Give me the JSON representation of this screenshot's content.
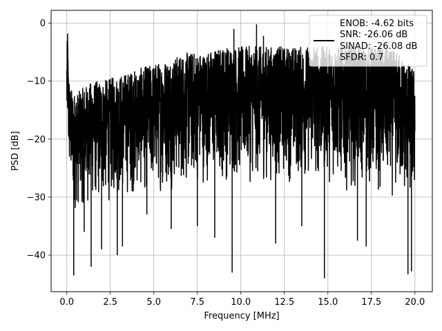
{
  "chart_data": {
    "type": "line",
    "title": "",
    "xlabel": "Frequency [MHz]",
    "ylabel": "PSD [dB]",
    "xlim": [
      -0.9,
      21.0
    ],
    "ylim": [
      -46.3,
      2.2
    ],
    "xticks": [
      0.0,
      2.5,
      5.0,
      7.5,
      10.0,
      12.5,
      15.0,
      17.5,
      20.0
    ],
    "xtick_labels": [
      "0.0",
      "2.5",
      "5.0",
      "7.5",
      "10.0",
      "12.5",
      "15.0",
      "17.5",
      "20.0"
    ],
    "yticks": [
      0,
      -10,
      -20,
      -30,
      -40
    ],
    "ytick_labels": [
      "0",
      "−10",
      "−20",
      "−30",
      "−40"
    ],
    "grid": true,
    "legend_position": "top-right",
    "series": [
      {
        "name": "ENOB: -4.62 bits",
        "color": "#000000",
        "x": [
          0.0,
          0.05,
          0.1,
          0.2,
          0.4,
          0.6,
          1.0,
          1.5,
          2.0,
          3.0,
          4.0,
          5.0,
          6.0,
          7.0,
          8.0,
          9.0,
          10.0,
          11.0,
          12.0,
          13.0,
          14.0,
          15.0,
          16.0,
          17.0,
          18.0,
          19.0,
          20.0
        ],
        "upper": [
          -4,
          -2,
          -8,
          -11,
          -12,
          -12,
          -11,
          -10,
          -10,
          -9,
          -8,
          -7,
          -6,
          -5,
          -5,
          -4,
          -4,
          -4,
          -4,
          -4,
          -4,
          -4,
          -4,
          -4,
          -4,
          -5,
          -8
        ],
        "lower": [
          -24,
          -22,
          -27,
          -30,
          -33,
          -33,
          -32,
          -32,
          -32,
          -31,
          -30,
          -30,
          -29,
          -29,
          -28,
          -28,
          -28,
          -28,
          -28,
          -28,
          -28,
          -28,
          -29,
          -29,
          -30,
          -31,
          -33
        ],
        "spikes": [
          [
            0.05,
            -1.8
          ],
          [
            0.4,
            -43.5
          ],
          [
            1.0,
            -36.0
          ],
          [
            1.4,
            -42.0
          ],
          [
            2.0,
            -39.0
          ],
          [
            2.9,
            -40.0
          ],
          [
            3.2,
            -38.5
          ],
          [
            4.6,
            -33.0
          ],
          [
            6.0,
            -35.5
          ],
          [
            7.5,
            -35.0
          ],
          [
            8.5,
            -37.0
          ],
          [
            9.5,
            -43.0
          ],
          [
            10.9,
            -0.2
          ],
          [
            12.0,
            -38.0
          ],
          [
            13.5,
            -35.0
          ],
          [
            14.8,
            -44.0
          ],
          [
            16.7,
            -37.5
          ],
          [
            17.2,
            -38.5
          ],
          [
            19.6,
            -43.3
          ],
          [
            19.8,
            -42.8
          ],
          [
            5.5,
            -27.5
          ],
          [
            11.3,
            -2.2
          ],
          [
            14.2,
            -4.2
          ],
          [
            16.2,
            -4.5
          ],
          [
            9.6,
            -1.0
          ]
        ]
      }
    ],
    "legend_entries": [
      "ENOB: -4.62 bits",
      "SNR: -26.06 dB",
      "SINAD: -26.08 dB",
      "SFDR: 0.7"
    ]
  }
}
